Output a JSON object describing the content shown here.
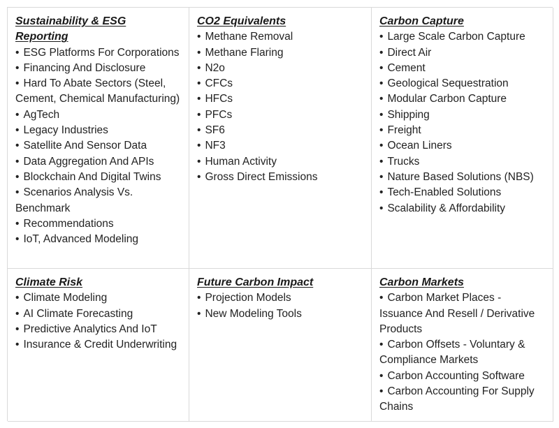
{
  "cells": [
    {
      "title": "Sustainability & ESG Reporting",
      "items": [
        "ESG Platforms For Corporations",
        "Financing And Disclosure",
        "Hard To Abate Sectors (Steel, Cement, Chemical Manufacturing)",
        "AgTech",
        "Legacy Industries",
        "Satellite And Sensor Data",
        "Data Aggregation And APIs",
        "Blockchain And Digital Twins",
        "Scenarios Analysis Vs. Benchmark",
        "Recommendations",
        "IoT, Advanced Modeling"
      ]
    },
    {
      "title": "CO2 Equivalents",
      "items": [
        "Methane Removal",
        "Methane Flaring",
        "N2o",
        "CFCs",
        "HFCs",
        "PFCs",
        "SF6",
        "NF3",
        "Human Activity",
        "Gross Direct Emissions"
      ]
    },
    {
      "title": "Carbon Capture",
      "items": [
        "Large Scale Carbon Capture",
        "Direct Air",
        "Cement",
        "Geological Sequestration",
        "Modular Carbon Capture",
        "Shipping",
        "Freight",
        "Ocean Liners",
        "Trucks",
        "Nature Based Solutions (NBS)",
        "Tech-Enabled Solutions",
        "Scalability & Affordability"
      ]
    },
    {
      "title": "Climate Risk",
      "items": [
        "Climate Modeling",
        "AI Climate Forecasting",
        "Predictive Analytics And IoT",
        "Insurance & Credit Underwriting"
      ]
    },
    {
      "title": "Future Carbon Impact",
      "items": [
        "Projection Models",
        "New Modeling Tools"
      ]
    },
    {
      "title": "Carbon Markets",
      "items": [
        "Carbon Market Places - Issuance And Resell / Derivative Products",
        "Carbon Offsets - Voluntary & Compliance Markets",
        "Carbon Accounting Software",
        "Carbon Accounting For Supply Chains"
      ]
    }
  ],
  "bullet_glyph": "•"
}
